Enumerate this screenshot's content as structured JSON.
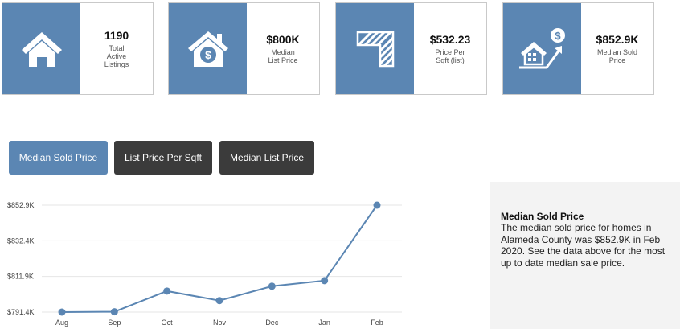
{
  "cards": [
    {
      "value": "1190",
      "label": "Total\nActive\nListings",
      "icon": "house-icon"
    },
    {
      "value": "$800K",
      "label": "Median\nList Price",
      "icon": "house-dollar-icon"
    },
    {
      "value": "$532.23",
      "label": "Price Per\nSqft (list)",
      "icon": "sqft-icon"
    },
    {
      "value": "$852.9K",
      "label": "Median Sold\nPrice",
      "icon": "house-growth-dollar-icon"
    }
  ],
  "tabs": [
    "Median Sold Price",
    "List Price Per Sqft",
    "Median List Price"
  ],
  "chart_data": {
    "type": "line",
    "categories": [
      "Aug",
      "Sep",
      "Oct",
      "Nov",
      "Dec",
      "Jan",
      "Feb"
    ],
    "values": [
      791.4,
      791.6,
      803.5,
      798.0,
      806.3,
      809.5,
      852.9
    ],
    "y_tick_labels": [
      "$791.4K",
      "$811.9K",
      "$832.4K",
      "$852.9K"
    ],
    "ylim": [
      791.4,
      852.9
    ],
    "grid": true,
    "colors": {
      "line": "#5b86b3",
      "grid": "#e6e6e6"
    }
  },
  "info_panel": {
    "title": "Median Sold Price",
    "body": "The median sold price for homes in Alameda County was $852.9K in Feb 2020. See the data above for the most up to date median sale price."
  },
  "colors": {
    "accent": "#5b86b3",
    "dark_button": "#3b3b3b",
    "panel_bg": "#f3f3f3"
  }
}
